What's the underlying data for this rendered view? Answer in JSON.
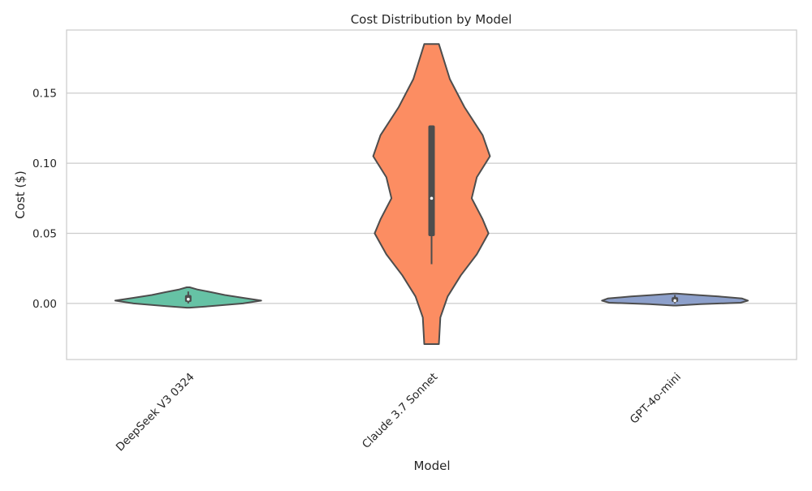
{
  "chart_data": {
    "type": "violin",
    "title": "Cost Distribution by Model",
    "xlabel": "Model",
    "ylabel": "Cost ($)",
    "ylim": [
      -0.04,
      0.195
    ],
    "yticks": [
      "0.00",
      "0.05",
      "0.10",
      "0.15"
    ],
    "ytick_values": [
      0.0,
      0.05,
      0.1,
      0.15
    ],
    "grid": "horizontal",
    "categories": [
      "DeepSeek V3 0324",
      "Claude 3.7 Sonnet",
      "GPT-4o-mini"
    ],
    "colors": {
      "violin_fills": [
        "#66c2a5",
        "#fc8d62",
        "#8da0cb"
      ],
      "outline": "#4d4d4d",
      "grid": "#cccccc",
      "frame": "#cccccc"
    },
    "series": [
      {
        "category": "DeepSeek V3 0324",
        "range": [
          -0.003,
          0.0115
        ],
        "box": {
          "q1": 0.001,
          "median": 0.003,
          "q3": 0.006,
          "whisker_low": 0.0,
          "whisker_high": 0.0085
        },
        "density": [
          {
            "y": -0.003,
            "w": 0.02
          },
          {
            "y": -0.002,
            "w": 0.3
          },
          {
            "y": 0.0,
            "w": 0.75
          },
          {
            "y": 0.002,
            "w": 1.0
          },
          {
            "y": 0.004,
            "w": 0.75
          },
          {
            "y": 0.006,
            "w": 0.5
          },
          {
            "y": 0.008,
            "w": 0.32
          },
          {
            "y": 0.01,
            "w": 0.12
          },
          {
            "y": 0.0115,
            "w": 0.02
          }
        ]
      },
      {
        "category": "Claude 3.7 Sonnet",
        "range": [
          -0.029,
          0.185
        ],
        "box": {
          "q1": 0.048,
          "median": 0.075,
          "q3": 0.127,
          "whisker_low": 0.028,
          "whisker_high": 0.127
        },
        "density": [
          {
            "y": -0.029,
            "w": 0.1
          },
          {
            "y": -0.01,
            "w": 0.12
          },
          {
            "y": 0.005,
            "w": 0.22
          },
          {
            "y": 0.02,
            "w": 0.4
          },
          {
            "y": 0.035,
            "w": 0.62
          },
          {
            "y": 0.05,
            "w": 0.78
          },
          {
            "y": 0.06,
            "w": 0.7
          },
          {
            "y": 0.075,
            "w": 0.55
          },
          {
            "y": 0.09,
            "w": 0.62
          },
          {
            "y": 0.105,
            "w": 0.8
          },
          {
            "y": 0.12,
            "w": 0.7
          },
          {
            "y": 0.14,
            "w": 0.45
          },
          {
            "y": 0.16,
            "w": 0.25
          },
          {
            "y": 0.185,
            "w": 0.1
          }
        ]
      },
      {
        "category": "GPT-4o-mini",
        "range": [
          -0.0015,
          0.007
        ],
        "box": {
          "q1": 0.001,
          "median": 0.002,
          "q3": 0.0045,
          "whisker_low": 0.0,
          "whisker_high": 0.006
        },
        "density": [
          {
            "y": -0.0015,
            "w": 0.02
          },
          {
            "y": -0.0005,
            "w": 0.35
          },
          {
            "y": 0.0005,
            "w": 0.9
          },
          {
            "y": 0.002,
            "w": 1.0
          },
          {
            "y": 0.0035,
            "w": 0.92
          },
          {
            "y": 0.005,
            "w": 0.6
          },
          {
            "y": 0.006,
            "w": 0.3
          },
          {
            "y": 0.007,
            "w": 0.02
          }
        ]
      }
    ]
  }
}
